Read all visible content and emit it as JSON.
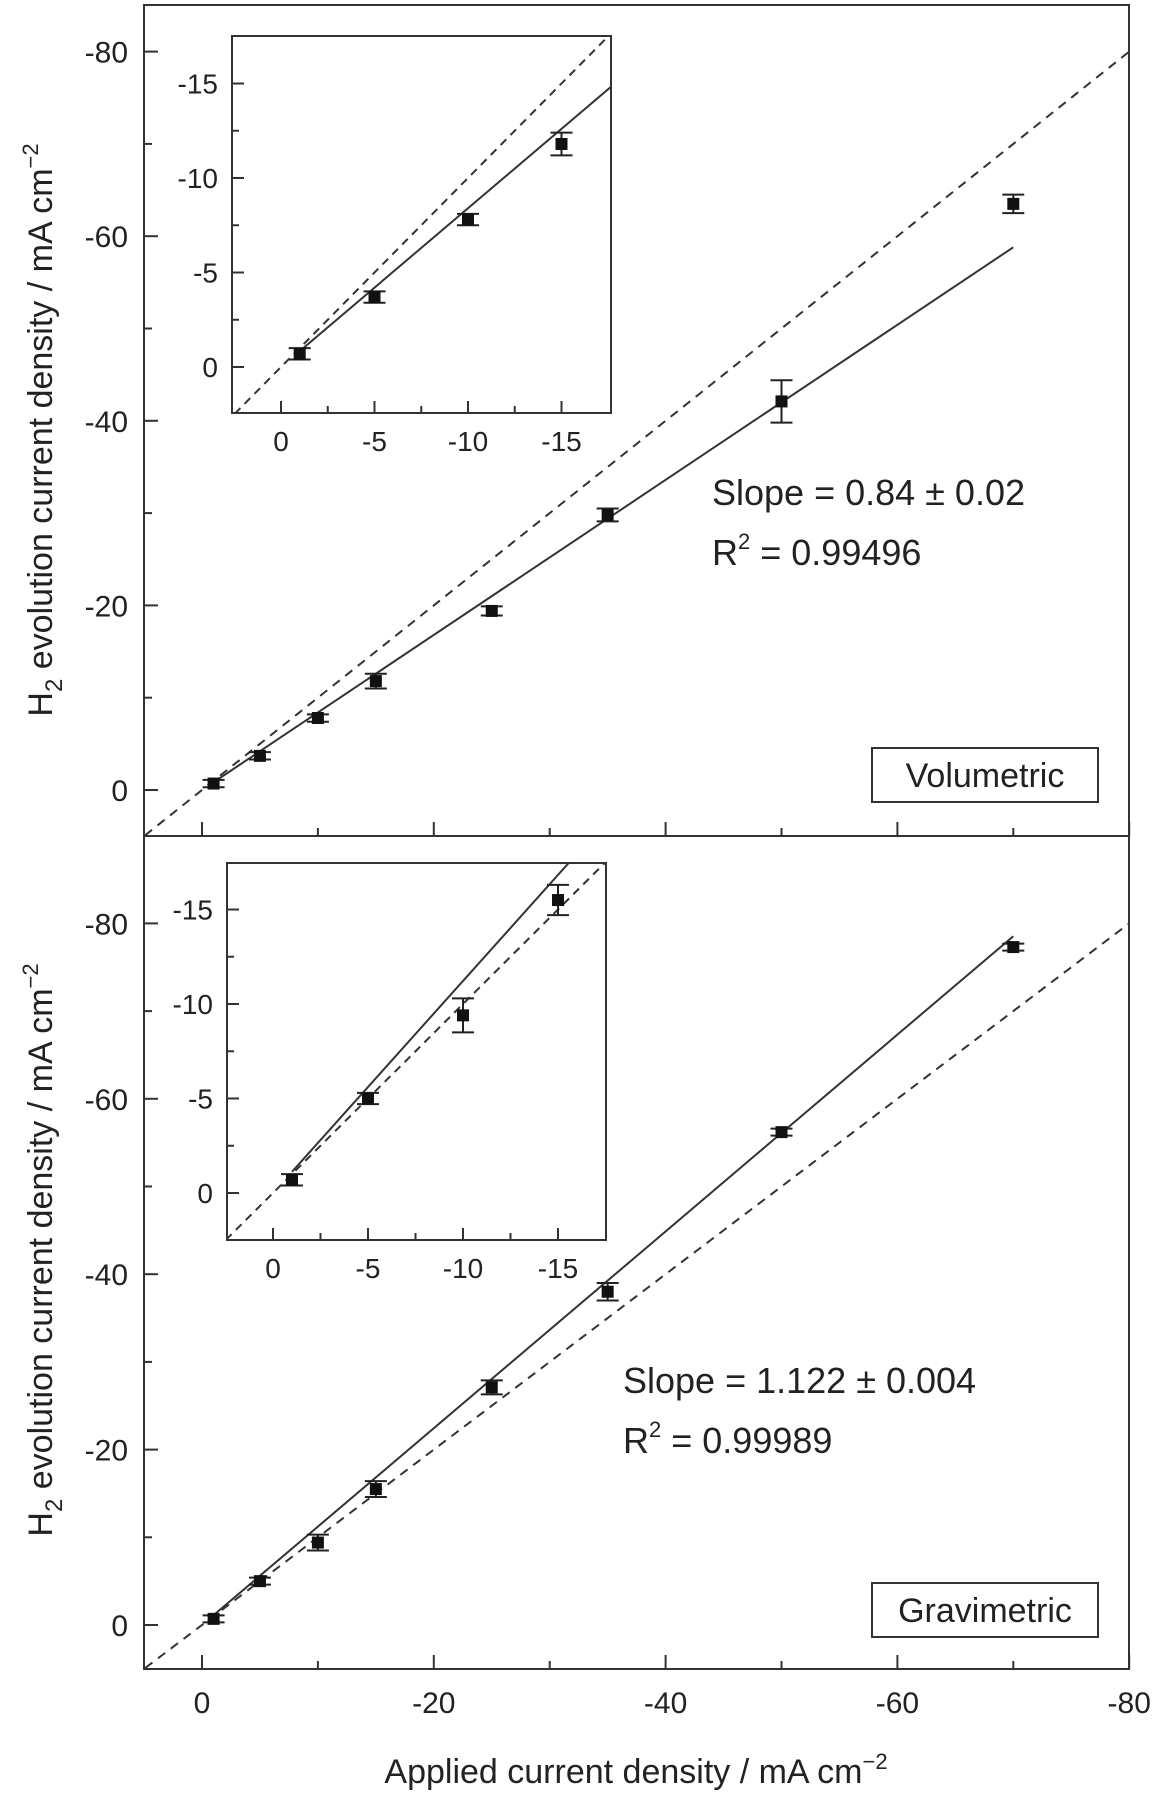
{
  "chart_data": [
    {
      "panel": "top",
      "type": "scatter",
      "label": "Volumetric",
      "xlabel": "Applied current density / mA cm⁻²",
      "ylabel": "H2 evolution current density / mA cm-2",
      "xlim": [
        5,
        -80
      ],
      "ylim": [
        5,
        -86
      ],
      "xticks": [
        0,
        -20,
        -40,
        -60,
        -80
      ],
      "yticks": [
        0,
        -20,
        -40,
        -60,
        -80
      ],
      "grid": false,
      "series": [
        {
          "name": "measured",
          "x": [
            -1,
            -5,
            -10,
            -15,
            -25,
            -35,
            -50,
            -70
          ],
          "y": [
            -0.7,
            -3.7,
            -7.8,
            -11.8,
            -19.4,
            -29.8,
            -42.1,
            -63.5
          ],
          "yerr": [
            0.4,
            0.4,
            0.4,
            0.8,
            0.5,
            0.7,
            2.3,
            1.0
          ]
        }
      ],
      "fit_line": {
        "slope": 0.84,
        "x_range": [
          -1,
          -70
        ],
        "style": "solid"
      },
      "reference_line": {
        "slope": 1.0,
        "style": "dashed"
      },
      "annotation": {
        "slope_text": "Slope = 0.84 ± 0.02",
        "r2_label": "R",
        "r2_sup": "2",
        "r2_value": " = 0.99496"
      },
      "inset": {
        "xlim": [
          2.5,
          -17.5
        ],
        "ylim": [
          2.5,
          -17.5
        ],
        "xticks": [
          0,
          -5,
          -10,
          -15
        ],
        "yticks": [
          0,
          -5,
          -10,
          -15
        ],
        "x": [
          -1,
          -5,
          -10,
          -15
        ],
        "y": [
          -0.7,
          -3.7,
          -7.8,
          -11.8
        ],
        "yerr": [
          0.3,
          0.3,
          0.3,
          0.6
        ],
        "fit_slope": 0.84
      }
    },
    {
      "panel": "bottom",
      "type": "scatter",
      "label": "Gravimetric",
      "xlabel": "Applied current density / mA cm⁻²",
      "ylabel": "H2 evolution current density / mA cm-2",
      "xlim": [
        5,
        -80
      ],
      "ylim": [
        5,
        -90
      ],
      "xticks": [
        0,
        -20,
        -40,
        -60,
        -80
      ],
      "yticks": [
        0,
        -20,
        -40,
        -60,
        -80
      ],
      "grid": false,
      "series": [
        {
          "name": "measured",
          "x": [
            -1,
            -5,
            -10,
            -15,
            -25,
            -35,
            -50,
            -70
          ],
          "y": [
            -0.7,
            -5.0,
            -9.4,
            -15.5,
            -27.1,
            -38.0,
            -56.2,
            -77.3
          ],
          "yerr": [
            0.4,
            0.4,
            0.9,
            0.9,
            0.8,
            1.0,
            0.4,
            0.4
          ]
        }
      ],
      "fit_line": {
        "slope": 1.122,
        "x_range": [
          -1,
          -70
        ],
        "style": "solid"
      },
      "reference_line": {
        "slope": 1.0,
        "style": "dashed"
      },
      "annotation": {
        "slope_text": "Slope = 1.122 ± 0.004",
        "r2_label": "R",
        "r2_sup": "2",
        "r2_value": " = 0.99989"
      },
      "inset": {
        "xlim": [
          2.5,
          -17.5
        ],
        "ylim": [
          2.5,
          -17.5
        ],
        "xticks": [
          0,
          -5,
          -10,
          -15
        ],
        "yticks": [
          0,
          -5,
          -10,
          -15
        ],
        "x": [
          -1,
          -5,
          -10,
          -15
        ],
        "y": [
          -0.7,
          -5.0,
          -9.4,
          -15.5
        ],
        "yerr": [
          0.3,
          0.3,
          0.9,
          0.8
        ],
        "fit_slope": 1.122
      }
    }
  ],
  "labels": {
    "x_axis_title": "Applied current density / mA cm",
    "x_axis_sup": "−2",
    "y_axis_title_prefix": "H",
    "y_axis_title_sub": "2",
    "y_axis_title_rest": " evolution current density / mA cm",
    "y_axis_sup": "−2",
    "top_panel_tag": "Volumetric",
    "bottom_panel_tag": "Gravimetric"
  }
}
